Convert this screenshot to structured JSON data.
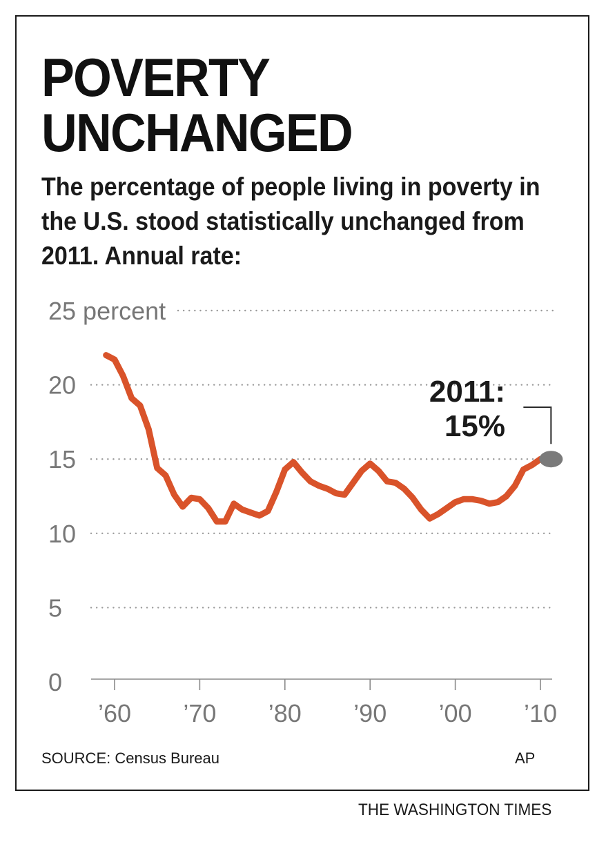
{
  "header": {
    "title_line1": "POVERTY",
    "title_line2": "UNCHANGED",
    "subtitle": "The percentage of people living in poverty in the U.S. stood statistically unchanged from 2011. Annual rate:"
  },
  "footer": {
    "source": "SOURCE: Census Bureau",
    "credit": "AP",
    "publisher": "THE WASHINGTON TIMES"
  },
  "colors": {
    "line": "#d9532a",
    "marker": "#7a7a7a",
    "grid": "#9a9a9a",
    "text": "#1a1a1a",
    "tick": "#777777"
  },
  "chart_data": {
    "type": "line",
    "title": "POVERTY UNCHANGED",
    "subtitle": "The percentage of people living in poverty in the U.S. stood statistically unchanged from 2011. Annual rate:",
    "xlabel": "",
    "ylabel": "",
    "xlim": [
      1960,
      2012
    ],
    "ylim": [
      0,
      25
    ],
    "y_ticks": [
      0,
      5,
      10,
      15,
      20,
      25
    ],
    "y_tick_labels": [
      "0",
      "5",
      "10",
      "15",
      "20",
      "25 percent"
    ],
    "x_ticks": [
      1960,
      1970,
      1980,
      1990,
      2000,
      2010
    ],
    "x_tick_labels": [
      "’60",
      "’70",
      "’80",
      "’90",
      "’00",
      "’10"
    ],
    "grid": "horizontal dotted",
    "series": [
      {
        "x": [
          1959,
          1960,
          1961,
          1962,
          1963,
          1964,
          1965,
          1966,
          1967,
          1968,
          1969,
          1970,
          1971,
          1972,
          1973,
          1974,
          1975,
          1976,
          1977,
          1978,
          1979,
          1980,
          1981,
          1982,
          1983,
          1984,
          1985,
          1986,
          1987,
          1988,
          1989,
          1990,
          1991,
          1992,
          1993,
          1994,
          1995,
          1996,
          1997,
          1998,
          1999,
          2000,
          2001,
          2002,
          2003,
          2004,
          2005,
          2006,
          2007,
          2008,
          2009,
          2010
        ],
        "values": [
          22.0,
          21.7,
          20.6,
          19.1,
          18.6,
          17.0,
          14.4,
          13.9,
          12.6,
          11.8,
          12.4,
          12.3,
          11.7,
          10.8,
          10.8,
          12.0,
          11.6,
          11.4,
          11.2,
          11.5,
          12.8,
          14.3,
          14.8,
          14.1,
          13.5,
          13.2,
          13.0,
          12.7,
          12.6,
          13.4,
          14.2,
          14.7,
          14.2,
          13.5,
          13.4,
          13.0,
          12.4,
          11.6,
          11.0,
          11.3,
          11.7,
          12.1,
          12.3,
          12.3,
          12.2,
          12.0,
          12.1,
          12.5,
          13.2,
          14.3,
          14.6,
          15.0
        ]
      }
    ],
    "highlight": {
      "x": 2011,
      "value": 15,
      "label_line1": "2011:",
      "label_line2": "15%"
    }
  }
}
